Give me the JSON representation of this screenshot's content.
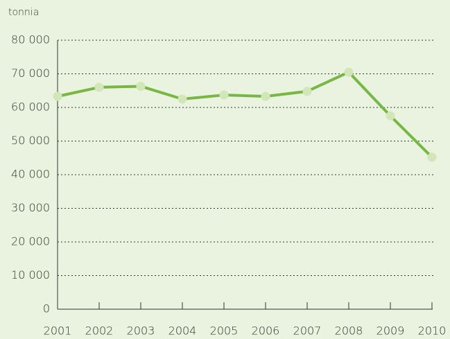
{
  "chart_data": {
    "type": "line",
    "y_axis_label": "tonnia",
    "categories": [
      "2001",
      "2002",
      "2003",
      "2004",
      "2005",
      "2006",
      "2007",
      "2008",
      "2009",
      "2010"
    ],
    "values": [
      63300,
      66000,
      66300,
      62500,
      63700,
      63300,
      64800,
      70500,
      57500,
      45200
    ],
    "color": "#76b843",
    "marker_color": "#d2e6b8",
    "ylim": [
      0,
      80000
    ],
    "yticks": [
      0,
      {
        "value": 10000,
        "label": "10 000"
      },
      {
        "value": 20000,
        "label": "20 000"
      },
      {
        "value": 30000,
        "label": "30 000"
      },
      {
        "value": 40000,
        "label": "40 000"
      },
      {
        "value": 50000,
        "label": "50 000"
      },
      {
        "value": 60000,
        "label": "60 000"
      },
      {
        "value": 70000,
        "label": "70 000"
      },
      {
        "value": 80000,
        "label": "80 000"
      }
    ],
    "grid": true
  }
}
